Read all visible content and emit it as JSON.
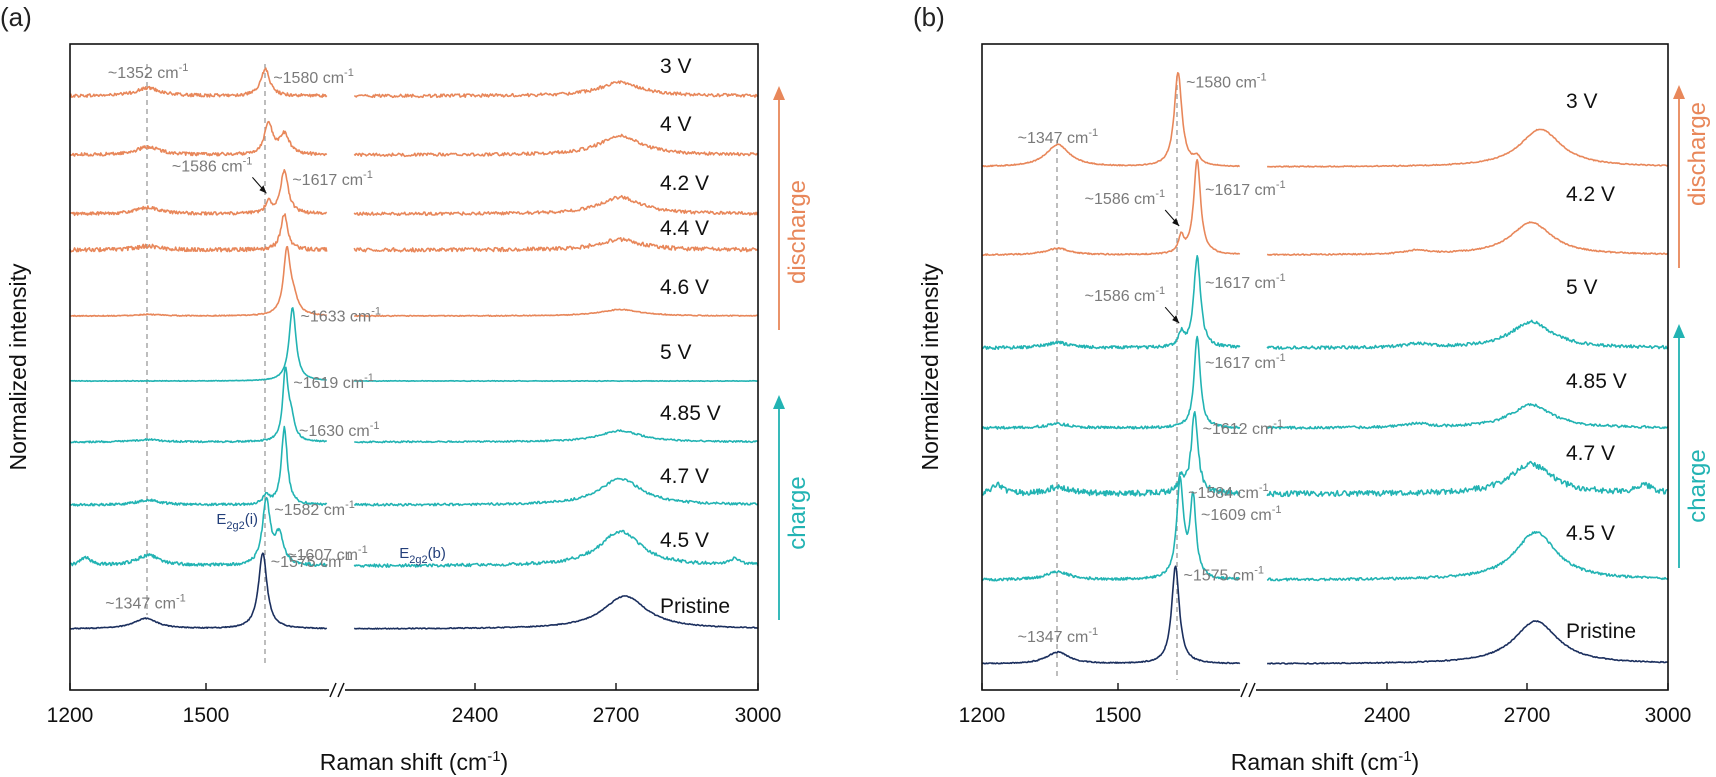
{
  "colors": {
    "discharge": "#e8875a",
    "charge": "#22b3b3",
    "pristine": "#1b2f5e",
    "guide": "#9a9a9a",
    "annotation": "#7a7a7a",
    "peak_label": "#233f7a"
  },
  "chart_data": [
    {
      "type": "line",
      "panel_label": "(a)",
      "xlabel": "Raman shift (cm-1)",
      "ylabel": "Normalized intensity",
      "x_break": [
        1700,
        2100
      ],
      "xlim": [
        1200,
        3000
      ],
      "xticks": [
        "1200",
        "1500",
        "2400",
        "2700",
        "3000"
      ],
      "y_ticks_shown": false,
      "reference_lines": [
        1352,
        1580
      ],
      "direction_labels": [
        {
          "text": "discharge",
          "color": "discharge"
        },
        {
          "text": "charge",
          "color": "charge"
        }
      ],
      "series": [
        {
          "name": "3 V",
          "color": "discharge",
          "peaks": [
            {
              "x": 1352,
              "h": 0.1,
              "w": 28
            },
            {
              "x": 1580,
              "h": 0.34,
              "w": 10
            },
            {
              "x": 2700,
              "h": 0.17,
              "w": 55
            }
          ],
          "noise": 0.02
        },
        {
          "name": "4 V",
          "color": "discharge",
          "peaks": [
            {
              "x": 1352,
              "h": 0.1,
              "w": 28
            },
            {
              "x": 1586,
              "h": 0.4,
              "w": 9
            },
            {
              "x": 1617,
              "h": 0.25,
              "w": 12
            },
            {
              "x": 2700,
              "h": 0.24,
              "w": 55
            }
          ],
          "noise": 0.02
        },
        {
          "name": "4.2 V",
          "color": "discharge",
          "peaks": [
            {
              "x": 1352,
              "h": 0.08,
              "w": 28
            },
            {
              "x": 1586,
              "h": 0.14,
              "w": 7
            },
            {
              "x": 1617,
              "h": 0.54,
              "w": 9
            },
            {
              "x": 2700,
              "h": 0.21,
              "w": 55
            }
          ],
          "noise": 0.02
        },
        {
          "name": "4.4 V",
          "color": "discharge",
          "peaks": [
            {
              "x": 1352,
              "h": 0.05,
              "w": 28
            },
            {
              "x": 1617,
              "h": 0.45,
              "w": 8
            },
            {
              "x": 2700,
              "h": 0.13,
              "w": 55
            }
          ],
          "noise": 0.025
        },
        {
          "name": "4.6 V",
          "color": "discharge",
          "peaks": [
            {
              "x": 1352,
              "h": 0.02,
              "w": 28
            },
            {
              "x": 1622,
              "h": 0.8,
              "w": 8
            },
            {
              "x": 1635,
              "h": 0.18,
              "w": 10
            },
            {
              "x": 2700,
              "h": 0.08,
              "w": 55
            }
          ],
          "noise": 0.006
        },
        {
          "name": "5 V",
          "color": "charge",
          "peaks": [
            {
              "x": 1633,
              "h": 0.92,
              "w": 8
            }
          ],
          "noise": 0.004
        },
        {
          "name": "4.85 V",
          "color": "charge",
          "peaks": [
            {
              "x": 1352,
              "h": 0.03,
              "w": 28
            },
            {
              "x": 1619,
              "h": 0.85,
              "w": 6
            },
            {
              "x": 1630,
              "h": 0.28,
              "w": 8
            },
            {
              "x": 2700,
              "h": 0.14,
              "w": 55
            }
          ],
          "noise": 0.01
        },
        {
          "name": "4.7 V",
          "color": "charge",
          "peaks": [
            {
              "x": 1352,
              "h": 0.06,
              "w": 28
            },
            {
              "x": 1582,
              "h": 0.12,
              "w": 7
            },
            {
              "x": 1617,
              "h": 0.96,
              "w": 7
            },
            {
              "x": 2700,
              "h": 0.33,
              "w": 55
            }
          ],
          "noise": 0.015
        },
        {
          "name": "4.5 V",
          "color": "charge",
          "peaks": [
            {
              "x": 1230,
              "h": 0.1,
              "w": 12
            },
            {
              "x": 1352,
              "h": 0.13,
              "w": 28
            },
            {
              "x": 1582,
              "h": 0.81,
              "w": 9
            },
            {
              "x": 1607,
              "h": 0.36,
              "w": 10
            },
            {
              "x": 2700,
              "h": 0.43,
              "w": 55
            },
            {
              "x": 2950,
              "h": 0.08,
              "w": 15
            }
          ],
          "noise": 0.02
        },
        {
          "name": "Pristine",
          "color": "pristine",
          "peaks": [
            {
              "x": 1347,
              "h": 0.13,
              "w": 28
            },
            {
              "x": 1575,
              "h": 0.95,
              "w": 10
            },
            {
              "x": 2710,
              "h": 0.41,
              "w": 58
            }
          ],
          "noise": 0.006
        }
      ],
      "annotations": [
        {
          "text": "~1352 cm-1",
          "series": "3 V",
          "near": 1352
        },
        {
          "text": "~1580 cm-1",
          "series": "3 V",
          "near": 1580
        },
        {
          "text": "~1586 cm-1",
          "series": "4.2 V",
          "near": 1586,
          "arrow": true
        },
        {
          "text": "~1617 cm-1",
          "series": "4.2 V",
          "near": 1617
        },
        {
          "text": "~1633 cm-1",
          "series": "5 V",
          "near": 1633
        },
        {
          "text": "~1619 cm-1",
          "series": "4.85 V",
          "near": 1619
        },
        {
          "text": "~1630 cm-1",
          "series": "4.85 V",
          "near": 1630
        },
        {
          "text": "~1582 cm-1",
          "series": "4.5 V",
          "near": 1582
        },
        {
          "text": "~1607 cm-1",
          "series": "4.5 V",
          "near": 1607
        },
        {
          "text": "~1347 cm-1",
          "series": "Pristine",
          "near": 1347
        },
        {
          "text": "~1575 cm-1",
          "series": "Pristine",
          "near": 1575
        }
      ],
      "peak_labels": [
        {
          "text": "E2g2(i)",
          "series": "4.5 V",
          "near": 1582
        },
        {
          "text": "E2g2(b)",
          "series": "4.5 V",
          "near": 1607
        }
      ]
    },
    {
      "type": "line",
      "panel_label": "(b)",
      "xlabel": "Raman shift (cm-1)",
      "ylabel": "Normalized intensity",
      "x_break": [
        1700,
        2100
      ],
      "xlim": [
        1200,
        3000
      ],
      "xticks": [
        "1200",
        "1500",
        "2400",
        "2700",
        "3000"
      ],
      "y_ticks_shown": false,
      "reference_lines": [
        1347,
        1580
      ],
      "direction_labels": [
        {
          "text": "discharge",
          "color": "discharge"
        },
        {
          "text": "charge",
          "color": "charge"
        }
      ],
      "series": [
        {
          "name": "3 V",
          "color": "discharge",
          "peaks": [
            {
              "x": 1347,
              "h": 0.17,
              "w": 28
            },
            {
              "x": 1580,
              "h": 0.72,
              "w": 9
            },
            {
              "x": 1617,
              "h": 0.06,
              "w": 9
            },
            {
              "x": 2720,
              "h": 0.29,
              "w": 55
            }
          ],
          "noise": 0.004
        },
        {
          "name": "4.2 V",
          "color": "discharge",
          "peaks": [
            {
              "x": 1347,
              "h": 0.05,
              "w": 28
            },
            {
              "x": 1586,
              "h": 0.13,
              "w": 6
            },
            {
              "x": 1617,
              "h": 0.73,
              "w": 8
            },
            {
              "x": 2700,
              "h": 0.25,
              "w": 55
            },
            {
              "x": 2450,
              "h": 0.03,
              "w": 30
            }
          ],
          "noise": 0.005
        },
        {
          "name": "5 V",
          "color": "charge",
          "peaks": [
            {
              "x": 1347,
              "h": 0.04,
              "w": 28
            },
            {
              "x": 1586,
              "h": 0.1,
              "w": 6
            },
            {
              "x": 1617,
              "h": 0.7,
              "w": 8
            },
            {
              "x": 2700,
              "h": 0.2,
              "w": 55
            },
            {
              "x": 2450,
              "h": 0.03,
              "w": 30
            }
          ],
          "noise": 0.012
        },
        {
          "name": "4.85 V",
          "color": "charge",
          "peaks": [
            {
              "x": 1347,
              "h": 0.03,
              "w": 28
            },
            {
              "x": 1617,
              "h": 0.71,
              "w": 7
            },
            {
              "x": 2700,
              "h": 0.18,
              "w": 55
            },
            {
              "x": 2450,
              "h": 0.03,
              "w": 30
            }
          ],
          "noise": 0.01
        },
        {
          "name": "4.7 V",
          "color": "charge",
          "peaks": [
            {
              "x": 1230,
              "h": 0.08,
              "w": 10
            },
            {
              "x": 1347,
              "h": 0.05,
              "w": 28
            },
            {
              "x": 1586,
              "h": 0.12,
              "w": 6
            },
            {
              "x": 1612,
              "h": 0.61,
              "w": 8
            },
            {
              "x": 2700,
              "h": 0.23,
              "w": 55
            },
            {
              "x": 2950,
              "h": 0.06,
              "w": 20
            }
          ],
          "noise": 0.022
        },
        {
          "name": "4.5 V",
          "color": "charge",
          "peaks": [
            {
              "x": 1347,
              "h": 0.06,
              "w": 28
            },
            {
              "x": 1584,
              "h": 0.74,
              "w": 8
            },
            {
              "x": 1609,
              "h": 0.61,
              "w": 7
            },
            {
              "x": 2710,
              "h": 0.37,
              "w": 55
            }
          ],
          "noise": 0.01
        },
        {
          "name": "Pristine",
          "color": "pristine",
          "peaks": [
            {
              "x": 1347,
              "h": 0.09,
              "w": 26
            },
            {
              "x": 1575,
              "h": 0.75,
              "w": 9
            },
            {
              "x": 2710,
              "h": 0.33,
              "w": 58
            }
          ],
          "noise": 0.004
        }
      ],
      "annotations": [
        {
          "text": "~1347 cm-1",
          "series": "3 V",
          "near": 1347
        },
        {
          "text": "~1580 cm-1",
          "series": "3 V",
          "near": 1580
        },
        {
          "text": "~1586 cm-1",
          "series": "4.2 V",
          "near": 1586,
          "arrow": true
        },
        {
          "text": "~1617 cm-1",
          "series": "4.2 V",
          "near": 1617
        },
        {
          "text": "~1586 cm-1",
          "series": "5 V",
          "near": 1586,
          "arrow": true
        },
        {
          "text": "~1617 cm-1",
          "series": "5 V",
          "near": 1617
        },
        {
          "text": "~1617 cm-1",
          "series": "4.85 V",
          "near": 1617
        },
        {
          "text": "~1612 cm-1",
          "series": "4.7 V",
          "near": 1612
        },
        {
          "text": "~1584 cm-1",
          "series": "4.5 V",
          "near": 1584
        },
        {
          "text": "~1609 cm-1",
          "series": "4.5 V",
          "near": 1609
        },
        {
          "text": "~1347 cm-1",
          "series": "Pristine",
          "near": 1347
        },
        {
          "text": "~1575 cm-1",
          "series": "Pristine",
          "near": 1575
        }
      ]
    }
  ]
}
